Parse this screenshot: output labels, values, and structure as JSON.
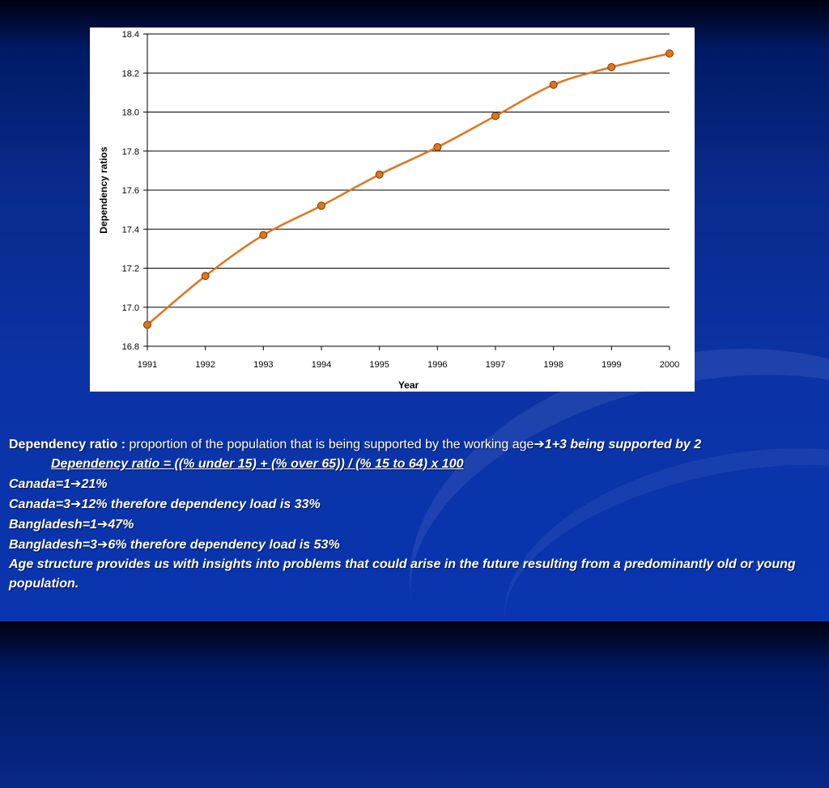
{
  "chart_data": {
    "type": "line",
    "x": [
      1991,
      1992,
      1993,
      1994,
      1995,
      1996,
      1997,
      1998,
      1999,
      2000
    ],
    "series": [
      {
        "values": [
          16.91,
          17.16,
          17.37,
          17.52,
          17.68,
          17.82,
          17.98,
          18.14,
          18.23,
          18.3
        ]
      }
    ],
    "xlabel": "Year",
    "ylabel": "Dependency ratios",
    "ylim": [
      16.8,
      18.4
    ],
    "yticks": [
      "16.8",
      "17.0",
      "17.2",
      "17.4",
      "17.6",
      "17.8",
      "18.0",
      "18.2",
      "18.4"
    ],
    "xticks": [
      "1991",
      "1992",
      "1993",
      "1994",
      "1995",
      "1996",
      "1997",
      "1998",
      "1999",
      "2000"
    ],
    "grid": true,
    "line_color": "#e0741c",
    "marker_color": "#e0741c"
  },
  "text": {
    "line1_term": "Dependency ratio : ",
    "line1_def": "proportion of the population that is being supported by the working age",
    "arrow": "➔",
    "line1_tail": "1+3 being supported by 2",
    "formula": "Dependency ratio = ((% under 15) + (% over 65)) / (% 15 to 64) x 100",
    "canada1_a": "Canada=1",
    "canada1_b": "21%",
    "canada3_a": "Canada=3",
    "canada3_b": "12% therefore dependency load is 33%",
    "bangladesh1_a": "Bangladesh=1",
    "bangladesh1_b": "47%",
    "bangladesh3_a": "Bangladesh=3",
    "bangladesh3_b": "6% therefore dependency load is 53%",
    "closing": "Age structure provides us with insights into problems that could arise in the future resulting from a predominantly old or young population."
  }
}
